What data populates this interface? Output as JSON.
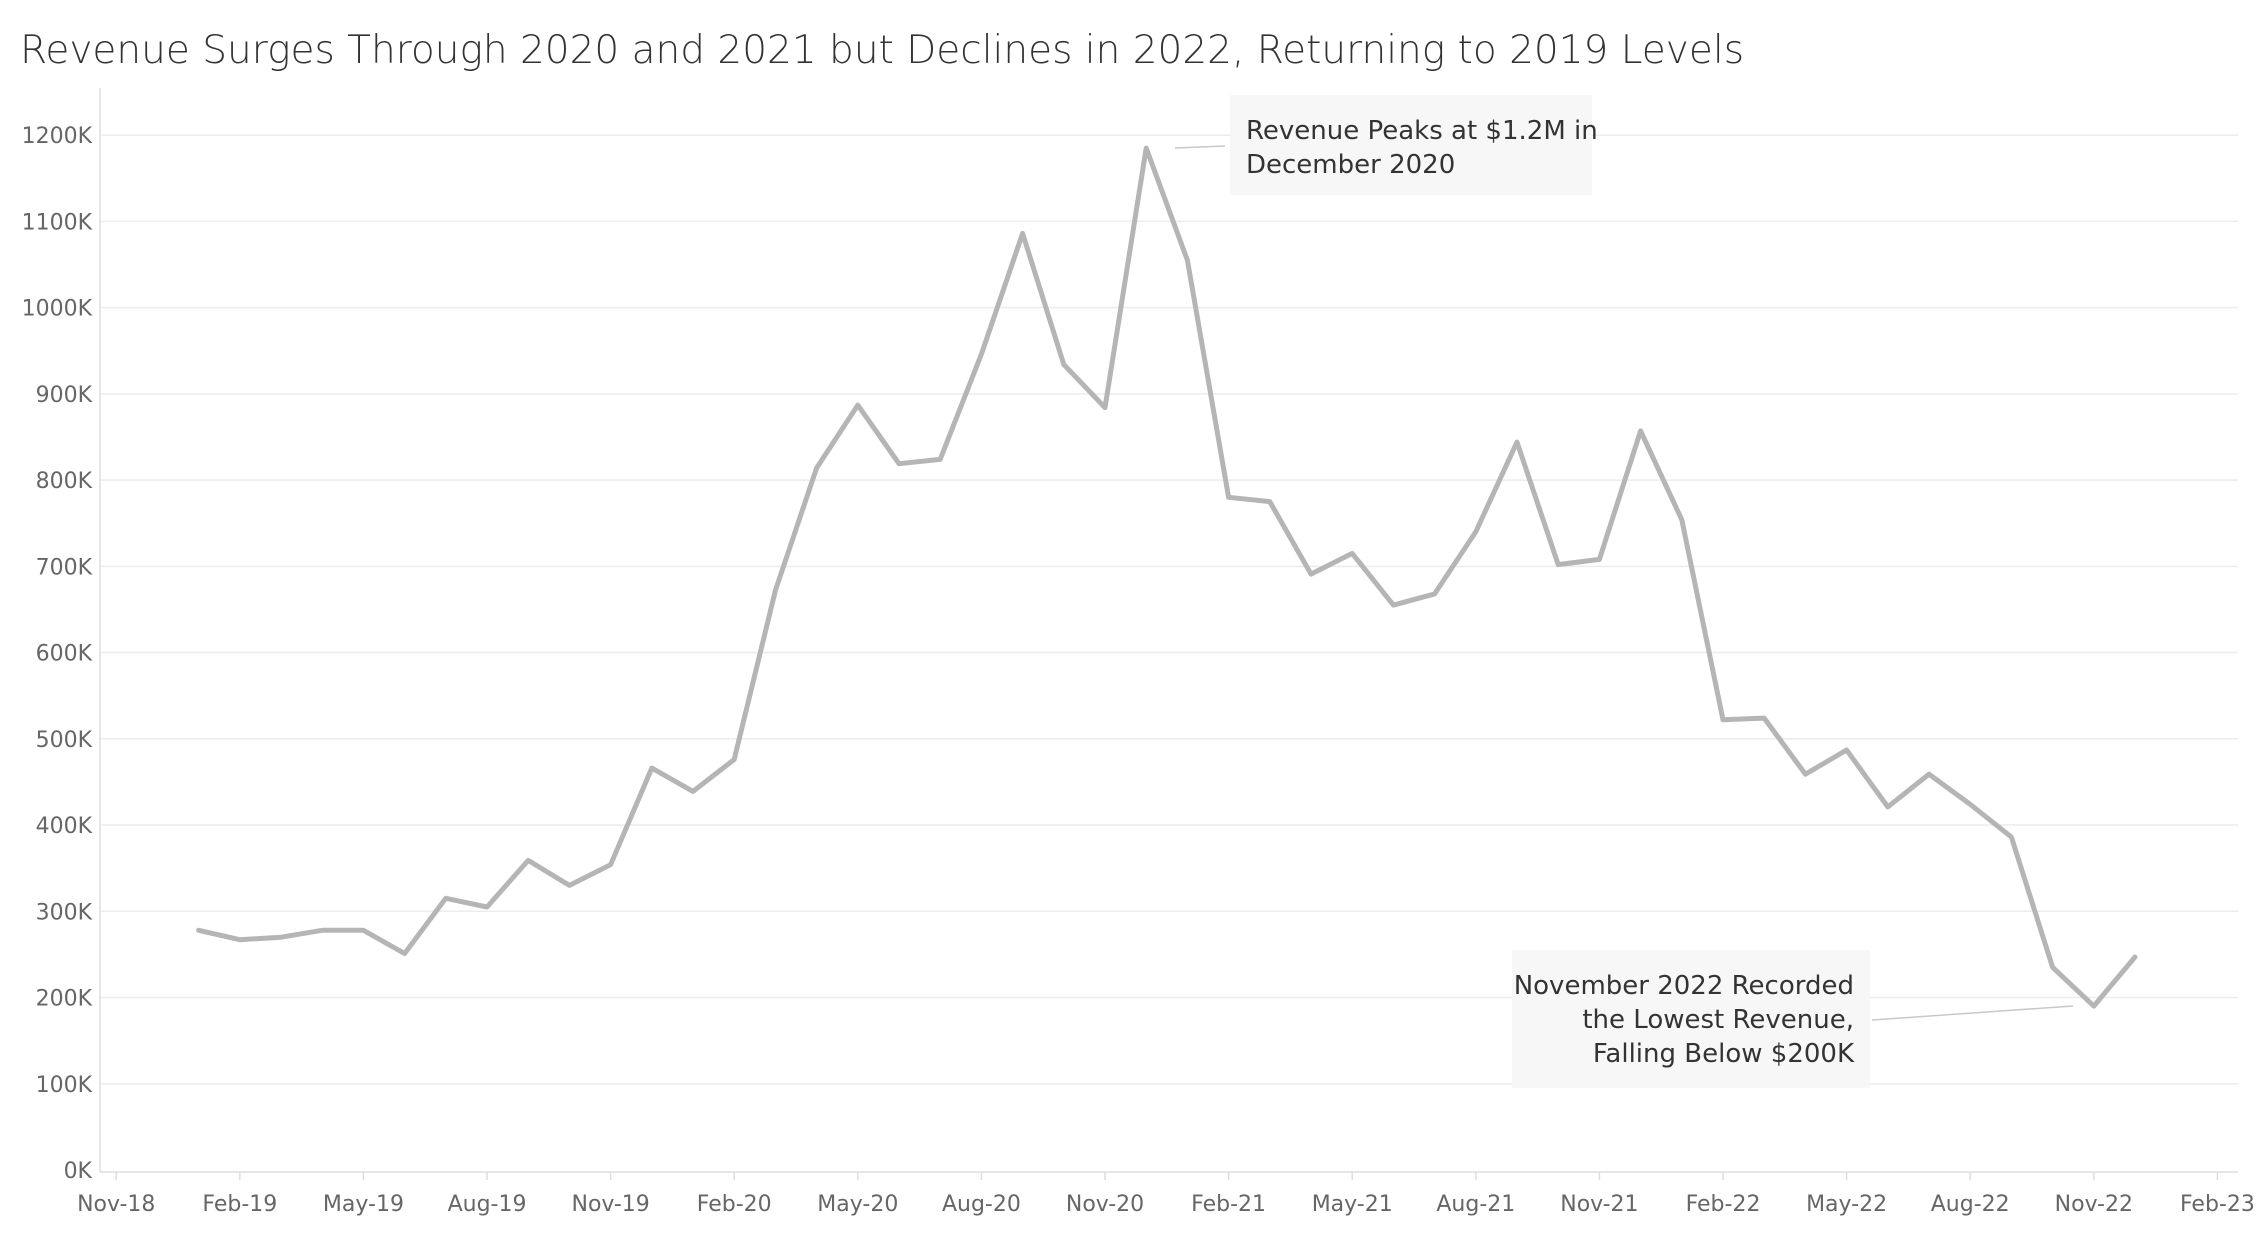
{
  "chart_data": {
    "type": "line",
    "title": "Revenue Surges Through 2020 and 2021 but Declines in 2022, Returning to 2019 Levels",
    "xlabel": "",
    "ylabel": "",
    "ylim": [
      0,
      1250000
    ],
    "y_ticks": [
      {
        "value": 0,
        "label": "0K"
      },
      {
        "value": 100000,
        "label": "100K"
      },
      {
        "value": 200000,
        "label": "200K"
      },
      {
        "value": 300000,
        "label": "300K"
      },
      {
        "value": 400000,
        "label": "400K"
      },
      {
        "value": 500000,
        "label": "500K"
      },
      {
        "value": 600000,
        "label": "600K"
      },
      {
        "value": 700000,
        "label": "700K"
      },
      {
        "value": 800000,
        "label": "800K"
      },
      {
        "value": 900000,
        "label": "900K"
      },
      {
        "value": 1000000,
        "label": "1000K"
      },
      {
        "value": 1100000,
        "label": "1100K"
      },
      {
        "value": 1200000,
        "label": "1200K"
      }
    ],
    "x_ticks": [
      {
        "value": "2018-11",
        "label": "Nov-18"
      },
      {
        "value": "2019-02",
        "label": "Feb-19"
      },
      {
        "value": "2019-05",
        "label": "May-19"
      },
      {
        "value": "2019-08",
        "label": "Aug-19"
      },
      {
        "value": "2019-11",
        "label": "Nov-19"
      },
      {
        "value": "2020-02",
        "label": "Feb-20"
      },
      {
        "value": "2020-05",
        "label": "May-20"
      },
      {
        "value": "2020-08",
        "label": "Aug-20"
      },
      {
        "value": "2020-11",
        "label": "Nov-20"
      },
      {
        "value": "2021-02",
        "label": "Feb-21"
      },
      {
        "value": "2021-05",
        "label": "May-21"
      },
      {
        "value": "2021-08",
        "label": "Aug-21"
      },
      {
        "value": "2021-11",
        "label": "Nov-21"
      },
      {
        "value": "2022-02",
        "label": "Feb-22"
      },
      {
        "value": "2022-05",
        "label": "May-22"
      },
      {
        "value": "2022-08",
        "label": "Aug-22"
      },
      {
        "value": "2022-11",
        "label": "Nov-22"
      },
      {
        "value": "2023-02",
        "label": "Feb-23"
      }
    ],
    "xlim": [
      "2018-11",
      "2023-02"
    ],
    "grid": true,
    "series": [
      {
        "x": [
          "2019-01",
          "2019-02",
          "2019-03",
          "2019-04",
          "2019-05",
          "2019-06",
          "2019-07",
          "2019-08",
          "2019-09",
          "2019-10",
          "2019-11",
          "2019-12",
          "2020-01",
          "2020-02",
          "2020-03",
          "2020-04",
          "2020-05",
          "2020-06",
          "2020-07",
          "2020-08",
          "2020-09",
          "2020-10",
          "2020-11",
          "2020-12",
          "2021-01",
          "2021-02",
          "2021-03",
          "2021-04",
          "2021-05",
          "2021-06",
          "2021-07",
          "2021-08",
          "2021-09",
          "2021-10",
          "2021-11",
          "2021-12",
          "2022-01",
          "2022-02",
          "2022-03",
          "2022-04",
          "2022-05",
          "2022-06",
          "2022-07",
          "2022-08",
          "2022-09",
          "2022-10",
          "2022-11",
          "2022-12"
        ],
        "values": [
          278000,
          267000,
          270000,
          278000,
          278000,
          251000,
          315000,
          305000,
          359000,
          330000,
          354000,
          466000,
          439000,
          476000,
          672000,
          814000,
          887000,
          819000,
          824000,
          946000,
          1086000,
          934000,
          884000,
          1185000,
          1055000,
          780000,
          775000,
          691000,
          715000,
          655000,
          668000,
          740000,
          844000,
          702000,
          708000,
          857000,
          754000,
          522000,
          524000,
          459000,
          487000,
          421000,
          459000,
          424000,
          386000,
          235000,
          190000,
          247000
        ],
        "color": "#b5b5b5"
      }
    ],
    "annotations": [
      {
        "id": "peak",
        "lines": [
          "Revenue Peaks at $1.2M in",
          "December 2020"
        ],
        "x": "2020-12",
        "y": 1185000
      },
      {
        "id": "low",
        "lines": [
          "November 2022 Recorded",
          "the Lowest Revenue,",
          "Falling Below $200K"
        ],
        "x": "2022-11",
        "y": 190000
      }
    ]
  }
}
